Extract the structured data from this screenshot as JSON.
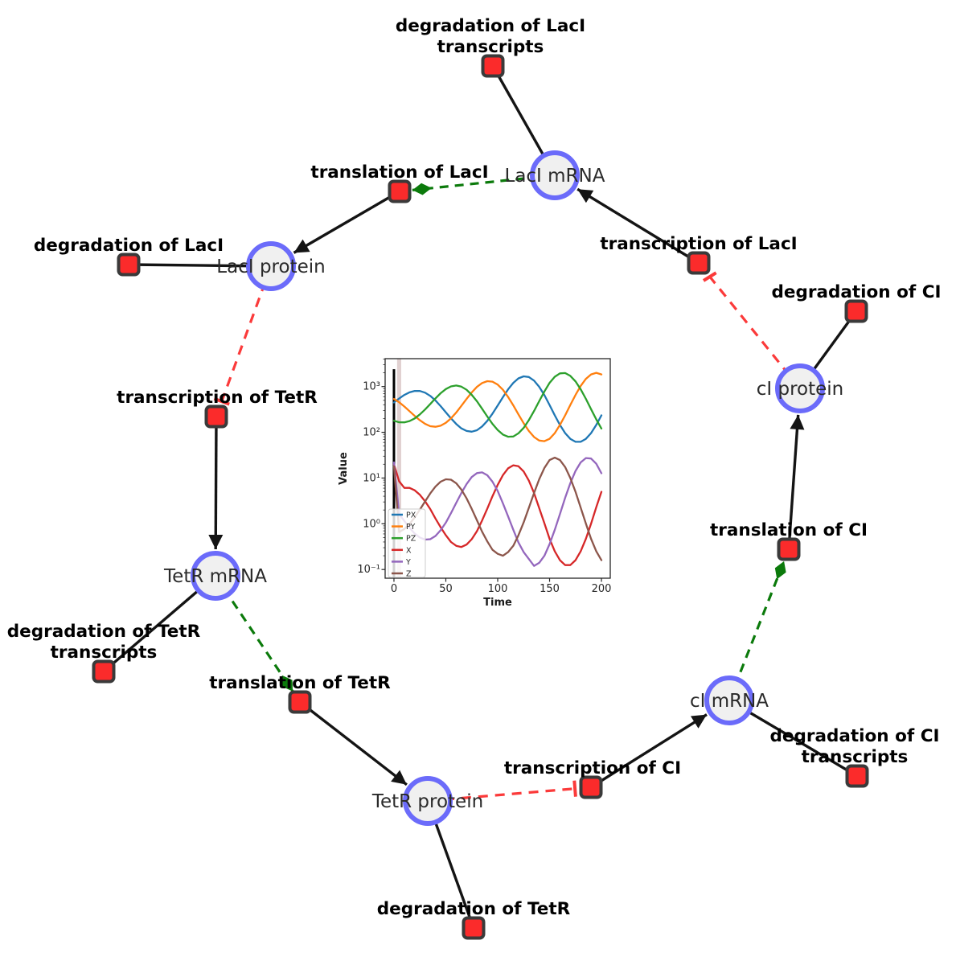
{
  "diagram": {
    "species": [
      {
        "id": "laci-mrna",
        "label": "LacI mRNA"
      },
      {
        "id": "laci-protein",
        "label": "LacI protein"
      },
      {
        "id": "tetr-mrna",
        "label": "TetR mRNA"
      },
      {
        "id": "tetr-protein",
        "label": "TetR protein"
      },
      {
        "id": "ci-mrna",
        "label": "cI mRNA"
      },
      {
        "id": "ci-protein",
        "label": "cI protein"
      }
    ],
    "reactions": [
      {
        "id": "degradation-laci-transcripts",
        "line1": "degradation of LacI",
        "line2": "transcripts"
      },
      {
        "id": "translation-laci",
        "label": "translation of LacI"
      },
      {
        "id": "degradation-laci",
        "label": "degradation of LacI"
      },
      {
        "id": "transcription-tetr",
        "label": "transcription of TetR"
      },
      {
        "id": "degradation-tetr-transcripts",
        "line1": "degradation of TetR",
        "line2": "transcripts"
      },
      {
        "id": "translation-tetr",
        "label": "translation of TetR"
      },
      {
        "id": "degradation-tetr",
        "label": "degradation of TetR"
      },
      {
        "id": "transcription-ci",
        "label": "transcription of CI"
      },
      {
        "id": "degradation-ci-transcripts",
        "line1": "degradation of CI",
        "line2": "transcripts"
      },
      {
        "id": "translation-ci",
        "label": "translation of CI"
      },
      {
        "id": "degradation-ci",
        "label": "degradation of CI"
      },
      {
        "id": "transcription-laci",
        "label": "transcription of LacI"
      }
    ],
    "edge_types": {
      "consumption_production": "solid black line / black arrow",
      "catalysis": "green dashed line with diamond head",
      "inhibition": "red dashed line with T-bar"
    },
    "colors": {
      "species_fill": "#f0f0f0",
      "species_border": "#6b6bfa",
      "reaction_fill": "#fb2b2b",
      "reaction_border": "#3a3a3a",
      "edge_black": "#141414",
      "edge_catalysis_green": "#0b7a0b",
      "edge_inhibition_red": "#fb3a3a"
    }
  },
  "chart_data": {
    "type": "line",
    "title": "",
    "xlabel": "Time",
    "ylabel": "Value",
    "x_scale": "linear",
    "y_scale": "log",
    "xlim": [
      -8.5,
      208.5
    ],
    "ylim_log10": [
      -1.19,
      3.61
    ],
    "x_ticks": [
      0,
      50,
      100,
      150,
      200
    ],
    "y_ticks": [
      0.1,
      1,
      10,
      100,
      1000
    ],
    "y_tick_labels": [
      "10⁻¹",
      "10⁰",
      "10¹",
      "10²",
      "10³"
    ],
    "legend_position": "lower left",
    "legend_entries": [
      "PX",
      "PY",
      "PZ",
      "X",
      "Y",
      "Z"
    ],
    "x": [
      0,
      5,
      10,
      15,
      20,
      25,
      30,
      35,
      40,
      45,
      50,
      55,
      60,
      65,
      70,
      75,
      80,
      85,
      90,
      95,
      100,
      105,
      110,
      115,
      120,
      125,
      130,
      135,
      140,
      145,
      150,
      155,
      160,
      165,
      170,
      175,
      180,
      185,
      190,
      195,
      200
    ],
    "series": [
      {
        "name": "PX",
        "color": "#1f77b4",
        "values": [
          448,
          548,
          655,
          748,
          803,
          800,
          735,
          625,
          496,
          374,
          274,
          202,
          152,
          122,
          107,
          103,
          111,
          134,
          178,
          256,
          385,
          586,
          867,
          1202,
          1510,
          1675,
          1616,
          1350,
          989,
          649,
          395,
          235,
          145,
          96,
          72,
          62,
          62,
          72,
          96,
          145,
          235
        ]
      },
      {
        "name": "PY",
        "color": "#ff7f0e",
        "values": [
          537,
          454,
          367,
          290,
          228,
          183,
          153,
          136,
          132,
          139,
          161,
          202,
          270,
          378,
          536,
          744,
          982,
          1194,
          1311,
          1279,
          1101,
          849,
          593,
          388,
          246,
          158,
          107,
          79,
          66,
          64,
          72,
          96,
          145,
          235,
          395,
          657,
          1033,
          1472,
          1845,
          1995,
          1845
        ]
      },
      {
        "name": "PZ",
        "color": "#2ca02c",
        "values": [
          179,
          166,
          165,
          176,
          201,
          246,
          315,
          416,
          552,
          714,
          881,
          1009,
          1054,
          996,
          850,
          660,
          476,
          327,
          221,
          153,
          112,
          89,
          80,
          81,
          95,
          125,
          184,
          292,
          479,
          782,
          1205,
          1640,
          1940,
          1972,
          1714,
          1297,
          870,
          539,
          320,
          192,
          121
        ]
      },
      {
        "name": "X",
        "color": "#d62728",
        "values": [
          20,
          8.5,
          6.1,
          6.1,
          5.4,
          4.3,
          3.1,
          2.1,
          1.3,
          0.84,
          0.56,
          0.4,
          0.33,
          0.31,
          0.35,
          0.46,
          0.69,
          1.18,
          2.15,
          4.0,
          7.1,
          11.6,
          16.3,
          19,
          18.1,
          13.9,
          8.8,
          4.7,
          2.2,
          1.02,
          0.47,
          0.25,
          0.16,
          0.125,
          0.125,
          0.16,
          0.25,
          0.47,
          1.0,
          2.3,
          5.0
        ]
      },
      {
        "name": "Y",
        "color": "#9467bd",
        "values": [
          22,
          1.63,
          1.15,
          0.82,
          0.61,
          0.5,
          0.45,
          0.46,
          0.54,
          0.72,
          1.06,
          1.71,
          2.85,
          4.7,
          7.4,
          10.5,
          12.8,
          13.3,
          11.5,
          8.3,
          5.2,
          2.8,
          1.45,
          0.74,
          0.39,
          0.24,
          0.17,
          0.12,
          0.14,
          0.2,
          0.36,
          0.74,
          1.63,
          3.7,
          7.7,
          14.3,
          22,
          27.3,
          26.7,
          20.5,
          12.7
        ]
      },
      {
        "name": "Z",
        "color": "#8c564b",
        "values": [
          18,
          0.66,
          0.77,
          0.99,
          1.38,
          2.04,
          3.08,
          4.6,
          6.5,
          8.3,
          9.4,
          9.2,
          7.7,
          5.6,
          3.6,
          2.12,
          1.19,
          0.67,
          0.41,
          0.27,
          0.22,
          0.2,
          0.24,
          0.33,
          0.56,
          1.07,
          2.22,
          4.7,
          9.4,
          16.6,
          24.7,
          27.9,
          24.7,
          17.4,
          10,
          5,
          2.26,
          1.01,
          0.47,
          0.25,
          0.16
        ]
      }
    ],
    "annotations": {
      "vline": {
        "x": 0,
        "y_top": 2400,
        "color": "#000000"
      },
      "transient_band": {
        "x0": 3,
        "x1": 7,
        "color": "rgba(188,152,152,0.45)"
      }
    }
  }
}
